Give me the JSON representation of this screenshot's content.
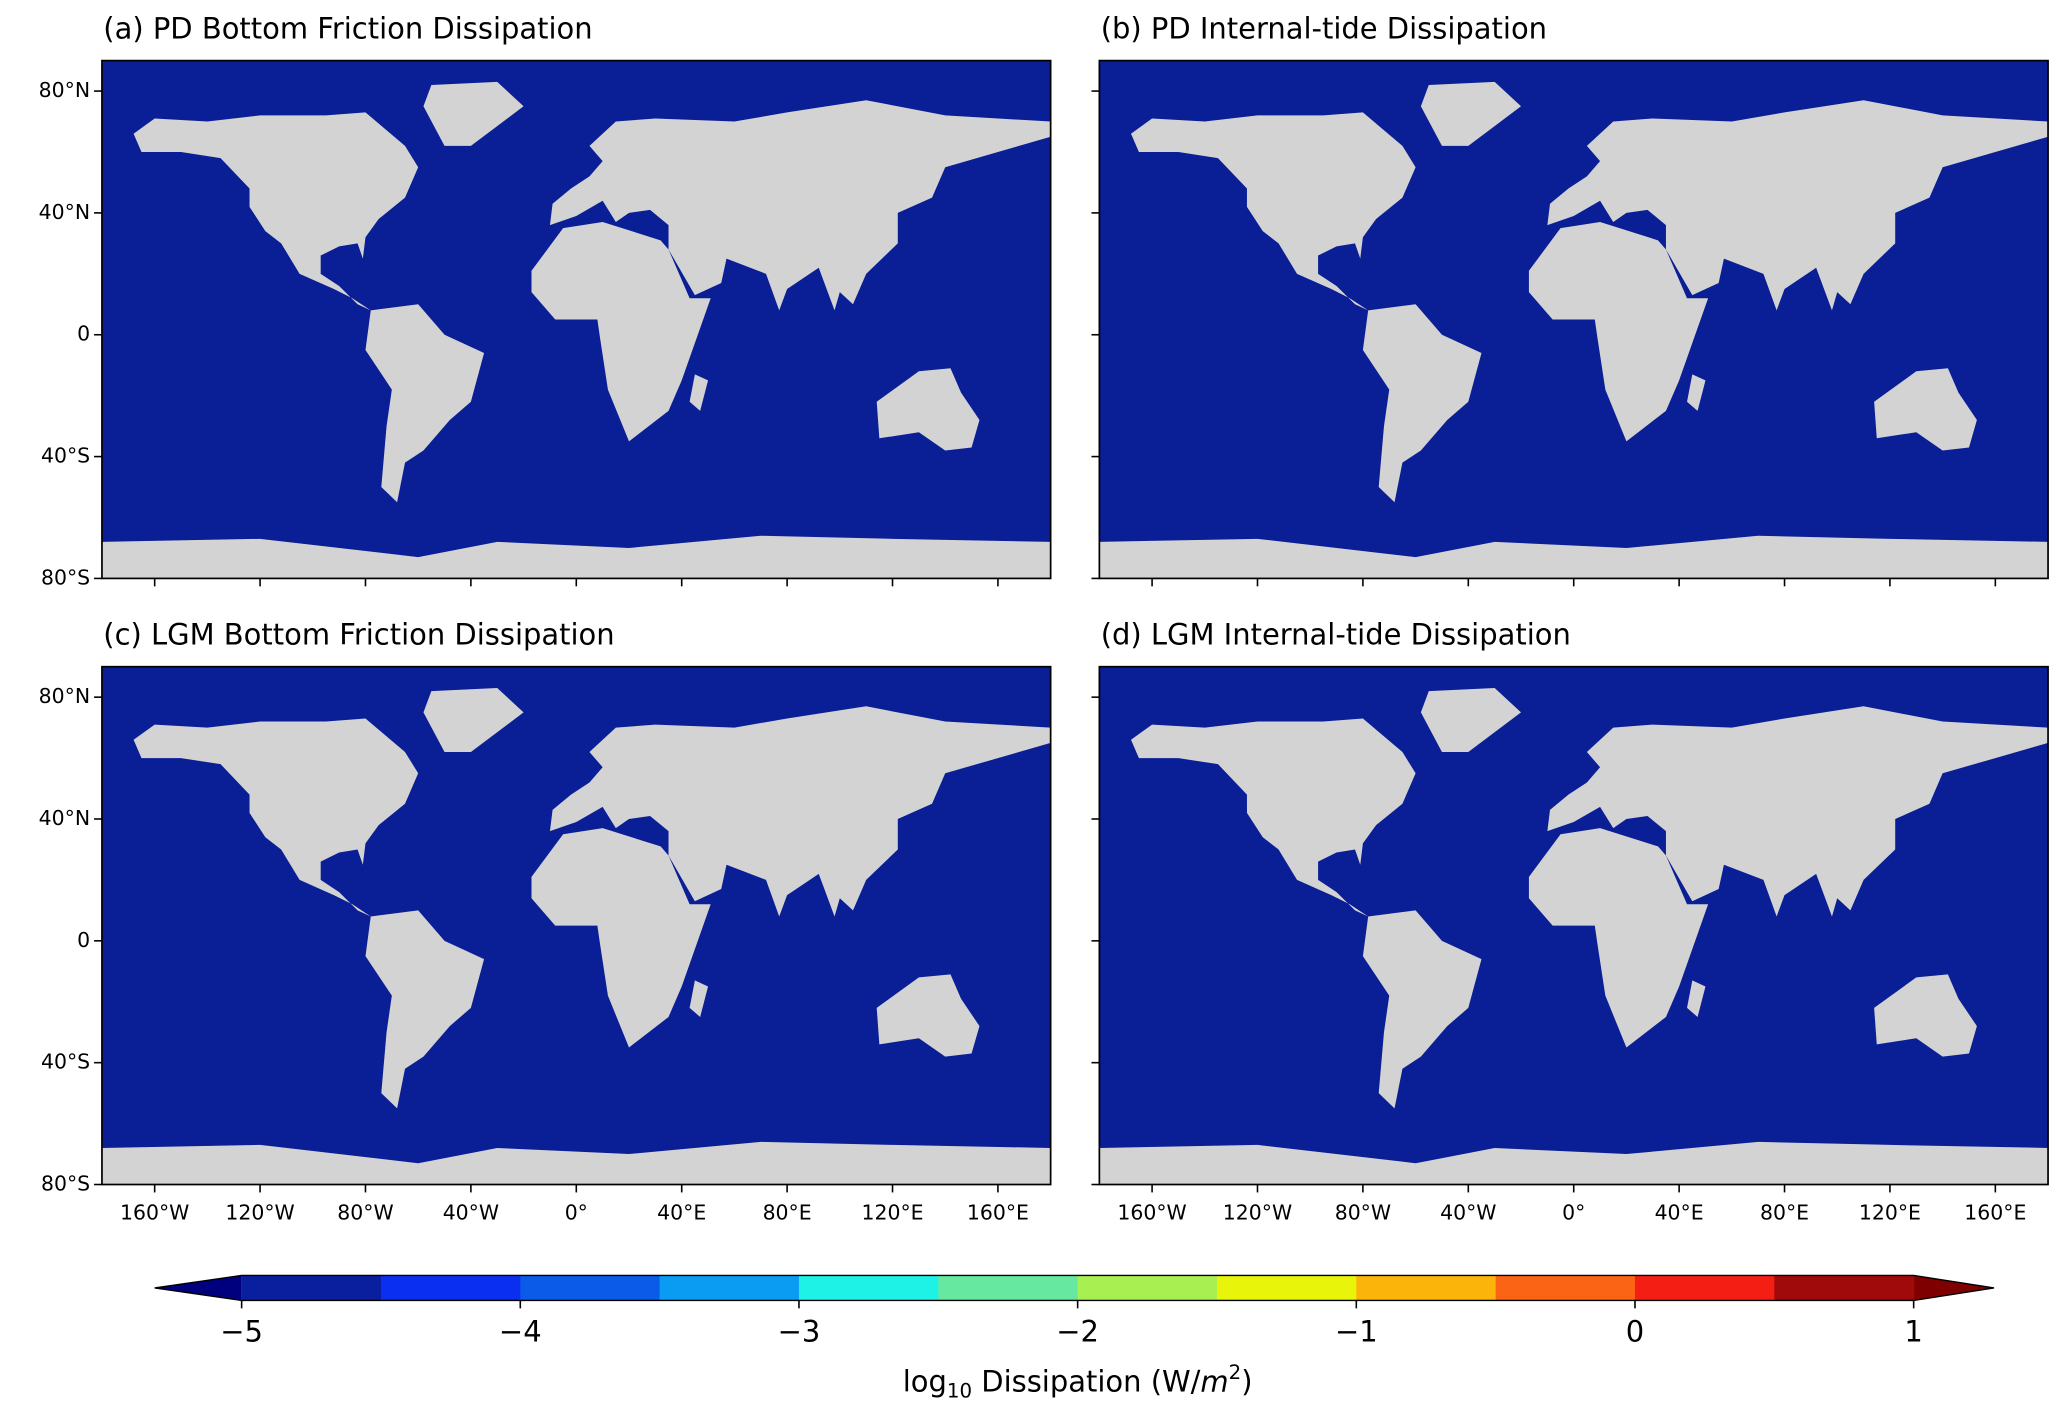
{
  "chart_data": {
    "type": "map",
    "panels": [
      {
        "title": "(a) PD Bottom Friction Dissipation"
      },
      {
        "title": "(b) PD Internal-tide Dissipation"
      },
      {
        "title": "(c) LGM Bottom Friction Dissipation"
      },
      {
        "title": "(d) LGM Internal-tide Dissipation"
      }
    ],
    "xlim": [
      -180,
      180
    ],
    "ylim": [
      -80,
      90
    ],
    "xticks": [
      {
        "value": -160,
        "label": "160°W"
      },
      {
        "value": -120,
        "label": "120°W"
      },
      {
        "value": -80,
        "label": "80°W"
      },
      {
        "value": -40,
        "label": "40°W"
      },
      {
        "value": 0,
        "label": "0°"
      },
      {
        "value": 40,
        "label": "40°E"
      },
      {
        "value": 80,
        "label": "80°E"
      },
      {
        "value": 120,
        "label": "120°E"
      },
      {
        "value": 160,
        "label": "160°E"
      }
    ],
    "yticks": [
      {
        "value": 80,
        "label": "80°N"
      },
      {
        "value": 40,
        "label": "40°N"
      },
      0,
      {
        "value": -40,
        "label": "40°S"
      },
      {
        "value": -80,
        "label": "80°S"
      }
    ],
    "ocean_color": "#0a1e96",
    "land_color": "#d3d3d3",
    "colorbar": {
      "lim": [
        -5,
        1
      ],
      "ticks": [
        {
          "value": -5,
          "label": "−5"
        },
        {
          "value": -4,
          "label": "−4"
        },
        {
          "value": -3,
          "label": "−3"
        },
        {
          "value": -2,
          "label": "−2"
        },
        {
          "value": -1,
          "label": "−1"
        },
        0,
        1
      ],
      "colors": [
        "#0a1f9e",
        "#0a2ff0",
        "#0c5ae8",
        "#0a9cf2",
        "#1ef2e6",
        "#66e8a0",
        "#a8f052",
        "#e8f40a",
        "#fbb40a",
        "#fa6414",
        "#f51e14",
        "#a00a0a"
      ],
      "extend_colors": [
        "#00007f",
        "#7f0000"
      ],
      "label_parts": [
        "log",
        "10",
        " Dissipation (W/",
        "m",
        "2",
        ")"
      ]
    }
  }
}
